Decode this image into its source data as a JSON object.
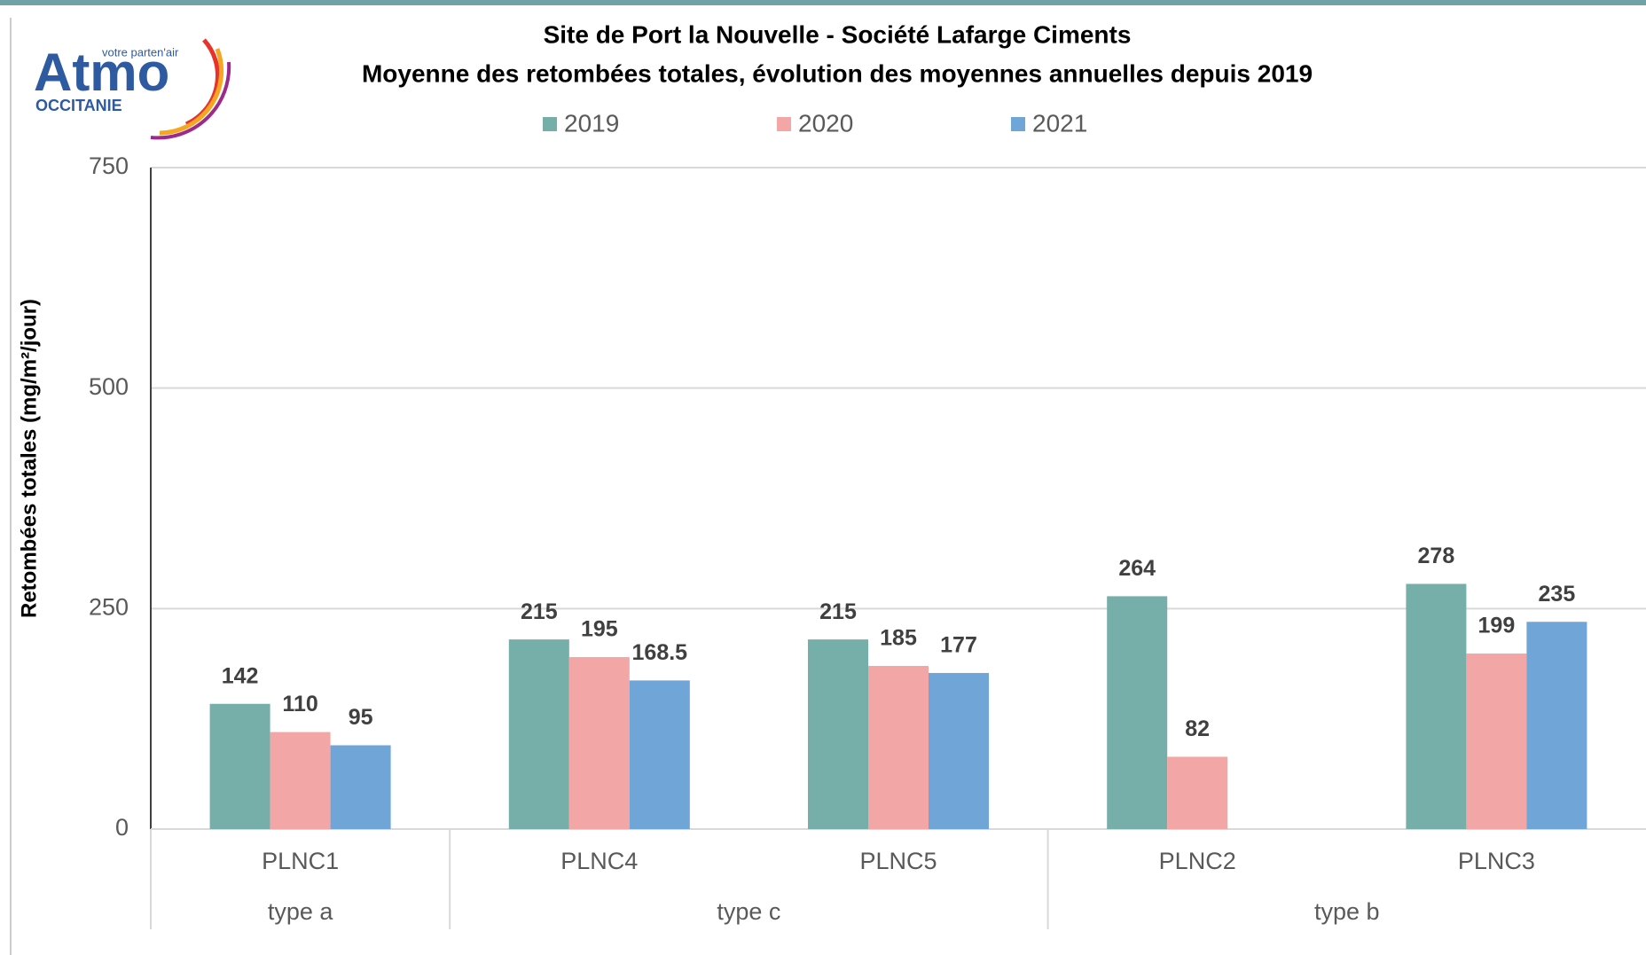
{
  "logo": {
    "name": "Atmo",
    "tagline": "votre parten'air",
    "region": "OCCITANIE"
  },
  "chart_data": {
    "type": "bar",
    "title": "Site de Port la Nouvelle - Société Lafarge Ciments",
    "subtitle": "Moyenne des retombées totales, évolution des moyennes annuelles depuis 2019",
    "y_label": "Retombées totales (mg/m²/jour)",
    "categories": [
      "PLNC1",
      "PLNC4",
      "PLNC5",
      "PLNC2",
      "PLNC3"
    ],
    "groups": [
      {
        "label": "type a",
        "span": 1
      },
      {
        "label": "type c",
        "span": 2
      },
      {
        "label": "type b",
        "span": 2
      }
    ],
    "series": [
      {
        "name": "2019",
        "color": "#76aea9",
        "values": [
          142,
          215,
          215,
          264,
          278
        ]
      },
      {
        "name": "2020",
        "color": "#f2a6a6",
        "values": [
          110,
          195,
          185,
          82,
          199
        ]
      },
      {
        "name": "2021",
        "color": "#6fa5d7",
        "values": [
          95,
          168.5,
          177,
          null,
          235
        ]
      }
    ],
    "ylim": [
      0,
      750
    ],
    "yticks": [
      0,
      250,
      500,
      750
    ],
    "grid": true,
    "legend": "top"
  }
}
